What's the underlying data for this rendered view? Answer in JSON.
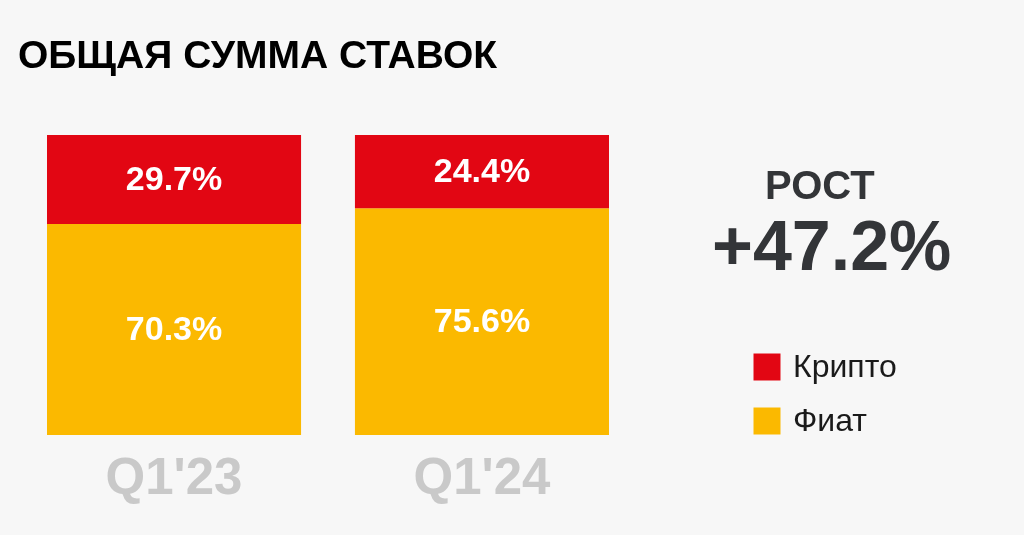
{
  "chart_data": {
    "type": "bar",
    "title": "ОБЩАЯ СУММА СТАВОК",
    "categories": [
      "Q1'23",
      "Q1'24"
    ],
    "stacked": true,
    "series": [
      {
        "name": "Фиат",
        "color": "#fbb900",
        "values": [
          70.3,
          75.6
        ],
        "value_labels": [
          "70.3%",
          "75.6%"
        ]
      },
      {
        "name": "Крипто",
        "color": "#e20613",
        "values": [
          29.7,
          24.4
        ],
        "value_labels": [
          "29.7%",
          "24.4%"
        ]
      }
    ],
    "legend": "right",
    "annotations": [
      "РОСТ",
      "+47.2%"
    ]
  }
}
